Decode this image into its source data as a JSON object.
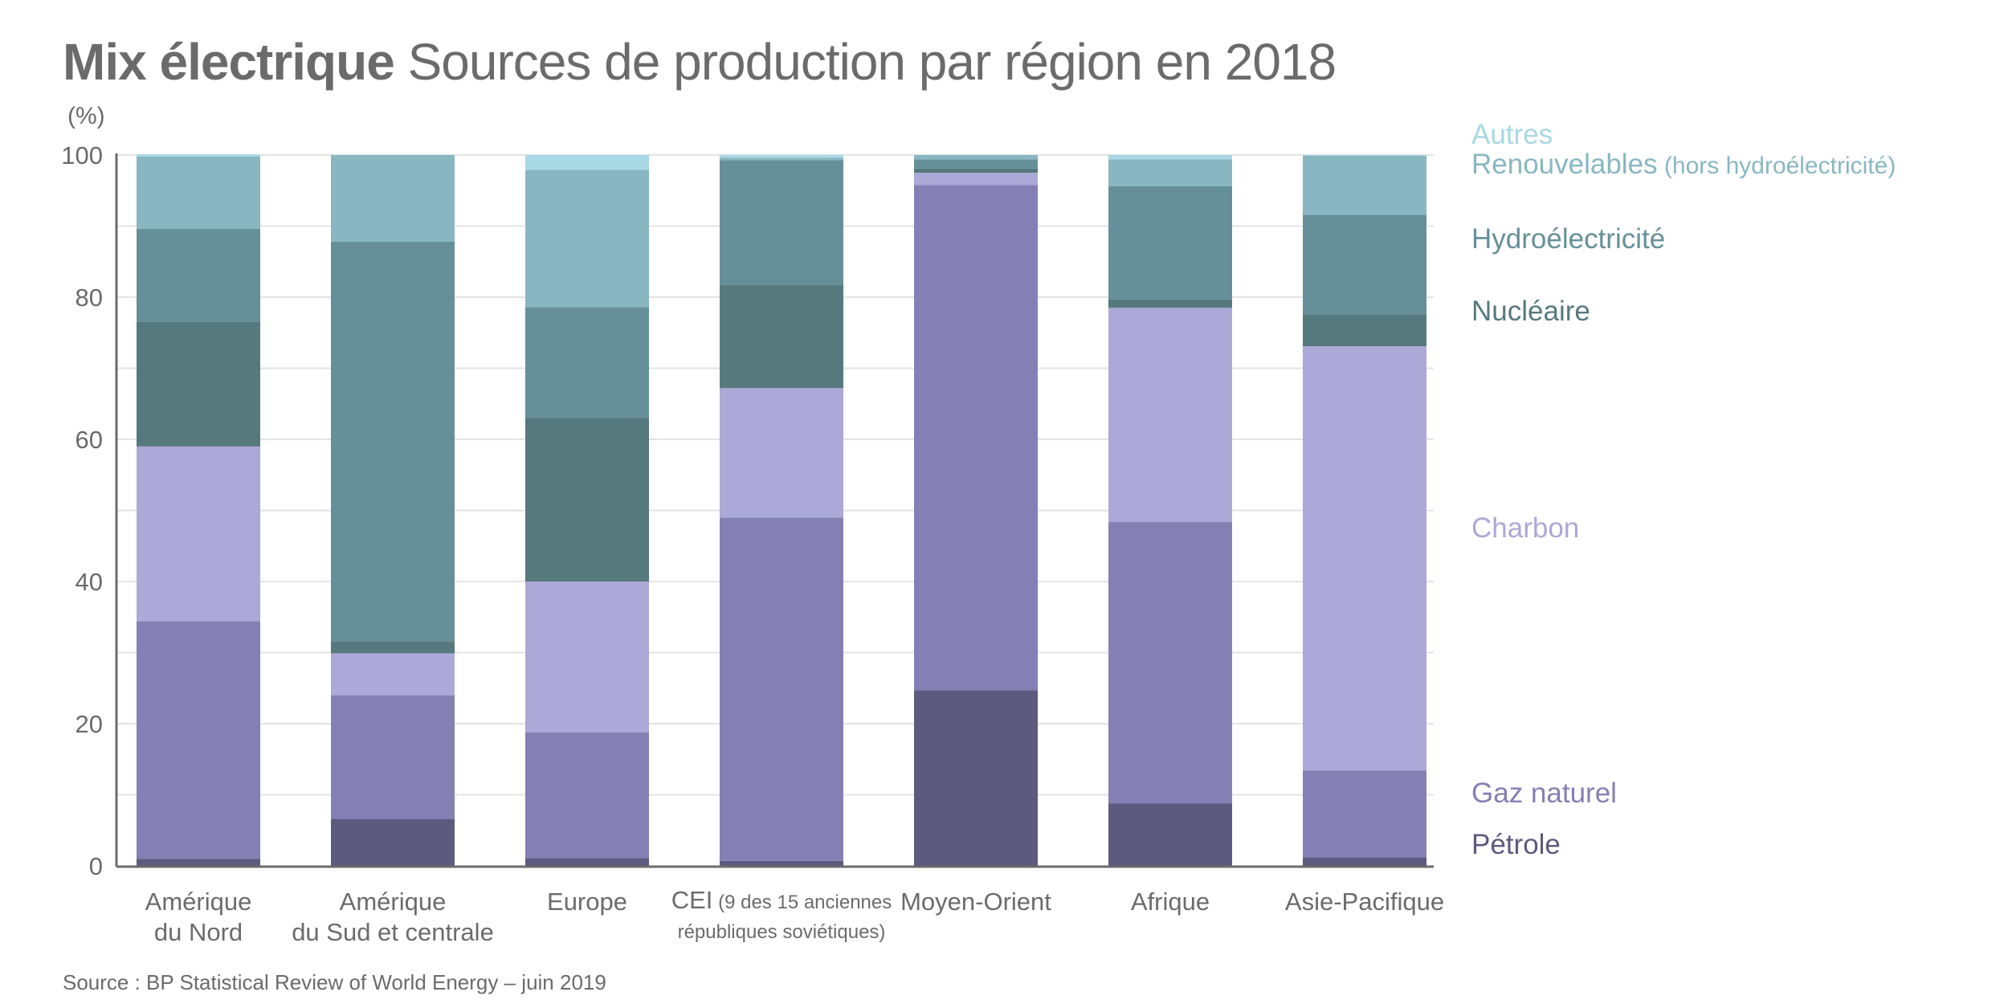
{
  "title": {
    "bold": "Mix électrique",
    "rest": "Sources de production par région en 2018"
  },
  "source": "Source : BP Statistical Review of World Energy – juin 2019",
  "chart_data": {
    "type": "bar",
    "stacked": true,
    "title": "Mix électrique Sources de production par région en 2018",
    "ylabel": "(%)",
    "xlabel": "",
    "ylim": [
      0,
      100
    ],
    "yticks": [
      0,
      20,
      40,
      60,
      80,
      100
    ],
    "grid": true,
    "legend_position": "right",
    "categories": [
      {
        "label": "Amérique du Nord",
        "line1": "Amérique",
        "line2": "du Nord",
        "note": ""
      },
      {
        "label": "Amérique du Sud et centrale",
        "line1": "Amérique",
        "line2": "du Sud et centrale",
        "note": ""
      },
      {
        "label": "Europe",
        "line1": "Europe",
        "line2": "",
        "note": ""
      },
      {
        "label": "CEI",
        "line1": "CEI",
        "line2": "",
        "note": "(9 des 15 anciennes",
        "note2": "républiques soviétiques)"
      },
      {
        "label": "Moyen-Orient",
        "line1": "Moyen-Orient",
        "line2": "",
        "note": ""
      },
      {
        "label": "Afrique",
        "line1": "Afrique",
        "line2": "",
        "note": ""
      },
      {
        "label": "Asie-Pacifique",
        "line1": "Asie-Pacifique",
        "line2": "",
        "note": ""
      }
    ],
    "series": [
      {
        "name": "Pétrole",
        "note": "",
        "color": "#5c5a7f",
        "values": [
          1.0,
          6.6,
          1.1,
          0.7,
          24.7,
          8.8,
          1.2
        ]
      },
      {
        "name": "Gaz naturel",
        "note": "",
        "color": "#8480b5",
        "values": [
          33.4,
          17.4,
          17.7,
          48.3,
          71.1,
          39.6,
          12.2
        ]
      },
      {
        "name": "Charbon",
        "note": "",
        "color": "#aca8d7",
        "values": [
          24.6,
          5.9,
          21.2,
          18.2,
          1.7,
          30.1,
          59.7
        ]
      },
      {
        "name": "Nucléaire",
        "note": "",
        "color": "#56797e",
        "values": [
          17.5,
          1.7,
          23.0,
          14.5,
          0.6,
          1.2,
          4.5
        ]
      },
      {
        "name": "Hydroélectricité",
        "note": "",
        "color": "#669099",
        "values": [
          13.1,
          56.2,
          15.6,
          17.6,
          1.3,
          15.9,
          14.0
        ]
      },
      {
        "name": "Renouvelables",
        "note": "(hors hydroélectricité)",
        "color": "#88b7c2",
        "values": [
          10.2,
          12.2,
          19.3,
          0.3,
          0.6,
          3.8,
          8.3
        ]
      },
      {
        "name": "Autres",
        "note": "",
        "color": "#a8d8e3",
        "values": [
          0.3,
          0.0,
          2.1,
          0.4,
          0.0,
          0.6,
          0.1
        ]
      }
    ]
  }
}
